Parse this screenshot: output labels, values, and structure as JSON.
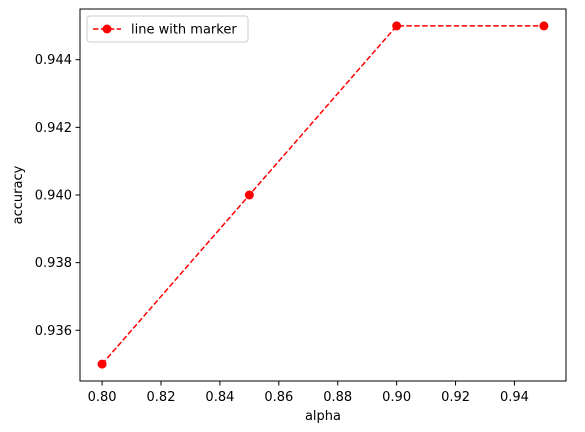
{
  "chart_data": {
    "type": "line",
    "title": "",
    "xlabel": "alpha",
    "ylabel": "accuracy",
    "x": [
      0.8,
      0.85,
      0.9,
      0.95
    ],
    "series": [
      {
        "name": "line with marker",
        "values": [
          0.935,
          0.94,
          0.945,
          0.945
        ],
        "color": "#ff0000",
        "linestyle": "dashed",
        "marker": "circle"
      }
    ],
    "xlim": [
      0.7925,
      0.9575
    ],
    "ylim": [
      0.9345,
      0.9455
    ],
    "xticks": [
      0.8,
      0.82,
      0.84,
      0.86,
      0.88,
      0.9,
      0.92,
      0.94
    ],
    "xtick_labels": [
      "0.80",
      "0.82",
      "0.84",
      "0.86",
      "0.88",
      "0.90",
      "0.92",
      "0.94"
    ],
    "yticks": [
      0.936,
      0.938,
      0.94,
      0.942,
      0.944
    ],
    "ytick_labels": [
      "0.936",
      "0.938",
      "0.940",
      "0.942",
      "0.944"
    ],
    "grid": false,
    "legend_position": "upper-left"
  }
}
